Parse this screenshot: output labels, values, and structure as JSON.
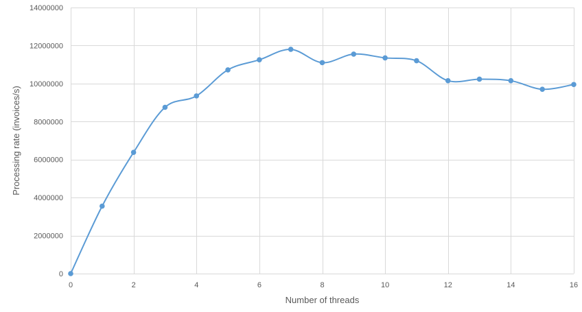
{
  "chart_data": {
    "type": "line",
    "title": "",
    "xlabel": "Number of threads",
    "ylabel": "Processing rate (invoices/s)",
    "xlim": [
      0,
      16
    ],
    "ylim": [
      0,
      14000000
    ],
    "x_ticks": [
      "0",
      "2",
      "4",
      "6",
      "8",
      "10",
      "12",
      "14",
      "16"
    ],
    "y_ticks": [
      "0",
      "2000000",
      "4000000",
      "6000000",
      "8000000",
      "10000000",
      "12000000",
      "14000000"
    ],
    "grid": true,
    "legend": "none",
    "smooth": true,
    "series": [
      {
        "color": "#5b9bd5",
        "x": [
          0,
          1,
          2,
          3,
          4,
          5,
          6,
          7,
          8,
          9,
          10,
          11,
          12,
          13,
          14,
          15,
          16
        ],
        "y": [
          0,
          3550000,
          6380000,
          8750000,
          9350000,
          10720000,
          11250000,
          11800000,
          11100000,
          11550000,
          11350000,
          11200000,
          10150000,
          10230000,
          10150000,
          9700000,
          9950000
        ]
      }
    ]
  }
}
